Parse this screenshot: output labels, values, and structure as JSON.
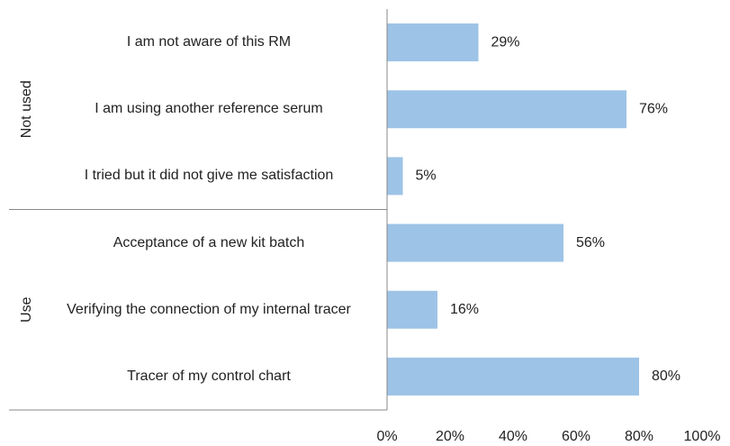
{
  "chart_data": {
    "type": "bar",
    "color": "#9dc3e6",
    "groups": [
      {
        "name": "Not used",
        "categories": [
          "I am not aware of this RM",
          "I am using another reference serum",
          "I tried but it did not give me satisfaction"
        ],
        "values": [
          29,
          76,
          5
        ],
        "value_labels": [
          "29%",
          "76%",
          "5%"
        ]
      },
      {
        "name": "Use",
        "categories": [
          "Acceptance of a new kit batch",
          "Verifying the connection of my internal tracer",
          "Tracer of my control chart"
        ],
        "values": [
          56,
          16,
          80
        ],
        "value_labels": [
          "56%",
          "16%",
          "80%"
        ]
      }
    ],
    "xlim": [
      0,
      100
    ],
    "xticks": [
      {
        "value": 0,
        "label": "0%"
      },
      {
        "value": 20,
        "label": "20%"
      },
      {
        "value": 40,
        "label": "40%"
      },
      {
        "value": 60,
        "label": "60%"
      },
      {
        "value": 80,
        "label": "80%"
      },
      {
        "value": 100,
        "label": "100%"
      }
    ]
  }
}
